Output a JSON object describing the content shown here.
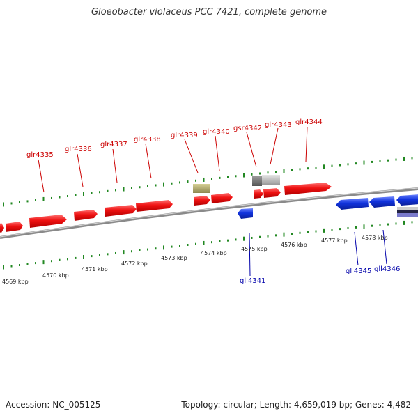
{
  "title": "Gloeobacter violaceus PCC 7421, complete genome",
  "footer": {
    "accession": "Accession: NC_005125",
    "summary": "Topology: circular; Length: 4,659,019 bp; Genes: 4,482"
  },
  "colors": {
    "forward_gene": "#ee1111",
    "reverse_gene": "#1133dd",
    "forward_label": "#cc0000",
    "reverse_label": "#0000aa",
    "tick": "#228822",
    "backbone": "#777777",
    "rna_gene": "#b5ae6a",
    "pseudo_gene": "#999999"
  },
  "kbp_labels": [
    "4569 kbp",
    "4570 kbp",
    "4571 kbp",
    "4572 kbp",
    "4573 kbp",
    "4574 kbp",
    "4575 kbp",
    "4576 kbp",
    "4577 kbp",
    "4578 kbp"
  ],
  "forward_gene_labels": [
    "glr4335",
    "glr4336",
    "glr4337",
    "glr4338",
    "glr4339",
    "glr4340",
    "gsr4342",
    "glr4343",
    "glr4344"
  ],
  "reverse_gene_labels": [
    "gll4341",
    "gll4345",
    "gll4346"
  ]
}
